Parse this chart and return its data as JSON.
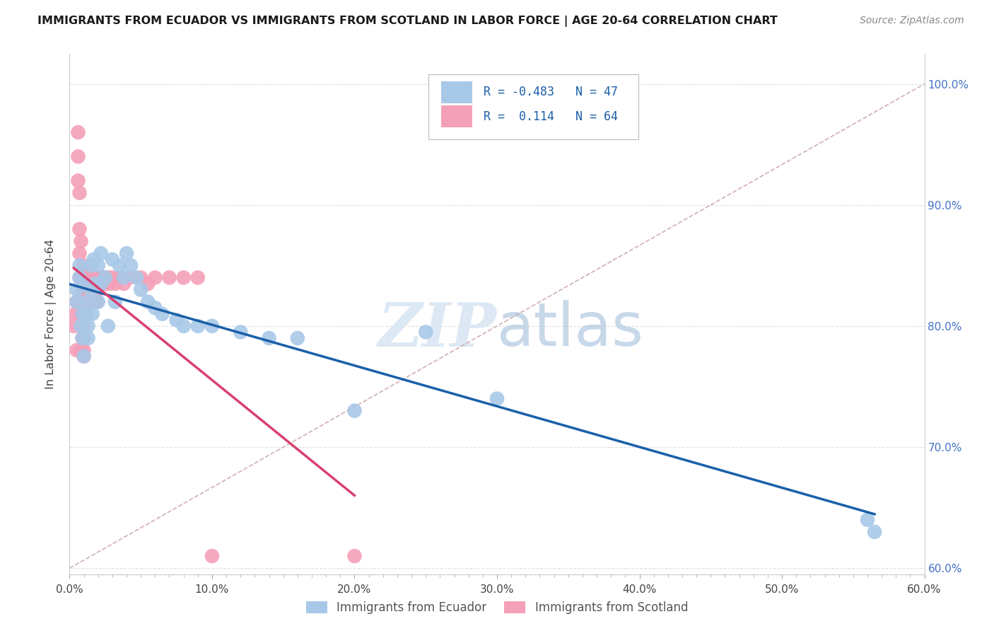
{
  "title": "IMMIGRANTS FROM ECUADOR VS IMMIGRANTS FROM SCOTLAND IN LABOR FORCE | AGE 20-64 CORRELATION CHART",
  "source": "Source: ZipAtlas.com",
  "ylabel": "In Labor Force | Age 20-64",
  "xlim": [
    0.0,
    0.6
  ],
  "ylim": [
    0.595,
    1.025
  ],
  "ytick_labels": [
    "60.0%",
    "70.0%",
    "80.0%",
    "90.0%",
    "100.0%"
  ],
  "ytick_vals": [
    0.6,
    0.7,
    0.8,
    0.9,
    1.0
  ],
  "xtick_labels": [
    "0.0%",
    "",
    "",
    "",
    "",
    "",
    "",
    "",
    "",
    "10.0%",
    "",
    "",
    "",
    "",
    "",
    "",
    "",
    "",
    "",
    "20.0%",
    "",
    "",
    "",
    "",
    "",
    "",
    "",
    "",
    "",
    "30.0%",
    "",
    "",
    "",
    "",
    "",
    "",
    "",
    "",
    "",
    "40.0%",
    "",
    "",
    "",
    "",
    "",
    "",
    "",
    "",
    "",
    "50.0%",
    "",
    "",
    "",
    "",
    "",
    "",
    "",
    "",
    "",
    "60.0%"
  ],
  "ecuador_R": "-0.483",
  "ecuador_N": "47",
  "scotland_R": "0.114",
  "scotland_N": "64",
  "ecuador_color": "#a8c8e8",
  "scotland_color": "#f4a0b8",
  "ecuador_line_color": "#1a5fa8",
  "scotland_line_color": "#d94070",
  "diagonal_color": "#d0b0b0",
  "watermark_color": "#dce8f4",
  "ecuador_x": [
    0.005,
    0.005,
    0.007,
    0.007,
    0.008,
    0.009,
    0.009,
    0.01,
    0.01,
    0.012,
    0.012,
    0.013,
    0.013,
    0.015,
    0.015,
    0.016,
    0.017,
    0.018,
    0.02,
    0.02,
    0.022,
    0.022,
    0.025,
    0.027,
    0.03,
    0.032,
    0.035,
    0.038,
    0.04,
    0.043,
    0.047,
    0.05,
    0.055,
    0.06,
    0.065,
    0.075,
    0.08,
    0.09,
    0.1,
    0.12,
    0.14,
    0.16,
    0.2,
    0.25,
    0.3,
    0.56,
    0.565
  ],
  "ecuador_y": [
    0.82,
    0.83,
    0.84,
    0.85,
    0.8,
    0.81,
    0.79,
    0.775,
    0.835,
    0.82,
    0.81,
    0.8,
    0.79,
    0.85,
    0.83,
    0.81,
    0.855,
    0.835,
    0.85,
    0.82,
    0.86,
    0.835,
    0.84,
    0.8,
    0.855,
    0.82,
    0.85,
    0.84,
    0.86,
    0.85,
    0.84,
    0.83,
    0.82,
    0.815,
    0.81,
    0.805,
    0.8,
    0.8,
    0.8,
    0.795,
    0.79,
    0.79,
    0.73,
    0.795,
    0.74,
    0.64,
    0.63
  ],
  "scotland_x": [
    0.003,
    0.004,
    0.005,
    0.005,
    0.006,
    0.006,
    0.006,
    0.007,
    0.007,
    0.007,
    0.007,
    0.008,
    0.008,
    0.008,
    0.008,
    0.009,
    0.009,
    0.009,
    0.01,
    0.01,
    0.01,
    0.01,
    0.01,
    0.01,
    0.01,
    0.01,
    0.011,
    0.011,
    0.012,
    0.012,
    0.013,
    0.013,
    0.014,
    0.014,
    0.015,
    0.015,
    0.015,
    0.016,
    0.016,
    0.017,
    0.018,
    0.018,
    0.019,
    0.02,
    0.02,
    0.022,
    0.023,
    0.024,
    0.025,
    0.027,
    0.028,
    0.03,
    0.032,
    0.035,
    0.038,
    0.042,
    0.05,
    0.055,
    0.06,
    0.07,
    0.08,
    0.09,
    0.1,
    0.2
  ],
  "scotland_y": [
    0.8,
    0.81,
    0.82,
    0.78,
    0.96,
    0.94,
    0.92,
    0.91,
    0.88,
    0.86,
    0.84,
    0.87,
    0.84,
    0.81,
    0.78,
    0.83,
    0.81,
    0.79,
    0.85,
    0.84,
    0.83,
    0.81,
    0.8,
    0.79,
    0.78,
    0.775,
    0.84,
    0.82,
    0.84,
    0.82,
    0.845,
    0.825,
    0.84,
    0.825,
    0.84,
    0.83,
    0.82,
    0.84,
    0.825,
    0.84,
    0.83,
    0.825,
    0.82,
    0.84,
    0.835,
    0.84,
    0.835,
    0.84,
    0.835,
    0.84,
    0.835,
    0.84,
    0.835,
    0.84,
    0.835,
    0.84,
    0.84,
    0.835,
    0.84,
    0.84,
    0.84,
    0.84,
    0.61,
    0.61
  ]
}
